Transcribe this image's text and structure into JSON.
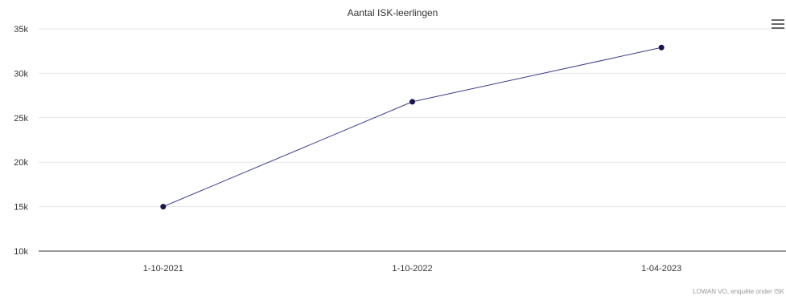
{
  "chart_data": {
    "type": "line",
    "title": "Aantal ISK-leerlingen",
    "xlabel": "",
    "ylabel": "",
    "categories": [
      "1-10-2021",
      "1-10-2022",
      "1-04-2023"
    ],
    "series": [
      {
        "values": [
          15000,
          26800,
          32900
        ]
      }
    ],
    "ylim": [
      10000,
      35000
    ],
    "ytick_values": [
      10000,
      15000,
      20000,
      25000,
      30000,
      35000
    ],
    "ytick_labels": [
      "10k",
      "15k",
      "20k",
      "25k",
      "30k",
      "35k"
    ],
    "grid": true,
    "legend": "none",
    "credits": "LOWAN VO, enquête onder ISK",
    "colors": {
      "line": "#3b3a8c",
      "marker": "#1a1450",
      "grid": "#e6e6e6",
      "axis": "#333333",
      "text": "#333333",
      "credits": "#999999"
    }
  },
  "menu": {
    "icon": "hamburger-menu-icon"
  }
}
